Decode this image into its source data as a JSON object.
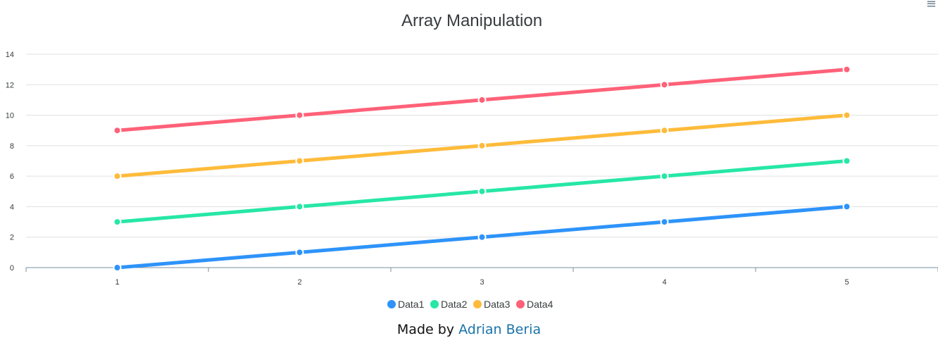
{
  "menu": {
    "icon": "hamburger-menu-icon",
    "glyph": "≡"
  },
  "credit": {
    "prefix": "Made by",
    "author": "Adrian Beria"
  },
  "colors": {
    "Data1": "#2e93fa",
    "Data2": "#26e7a6",
    "Data3": "#febb3b",
    "Data4": "#ff6178"
  },
  "chart_data": {
    "type": "line",
    "title": "Array Manipulation",
    "xlabel": "",
    "ylabel": "",
    "categories": [
      "1",
      "2",
      "3",
      "4",
      "5"
    ],
    "series": [
      {
        "name": "Data1",
        "values": [
          0,
          1,
          2,
          3,
          4
        ]
      },
      {
        "name": "Data2",
        "values": [
          3,
          4,
          5,
          6,
          7
        ]
      },
      {
        "name": "Data3",
        "values": [
          6,
          7,
          8,
          9,
          10
        ]
      },
      {
        "name": "Data4",
        "values": [
          9,
          10,
          11,
          12,
          13
        ]
      }
    ],
    "yticks": [
      0,
      2,
      4,
      6,
      8,
      10,
      12,
      14
    ],
    "ylim": [
      0,
      14
    ],
    "grid": true,
    "legend": "bottom-center"
  }
}
